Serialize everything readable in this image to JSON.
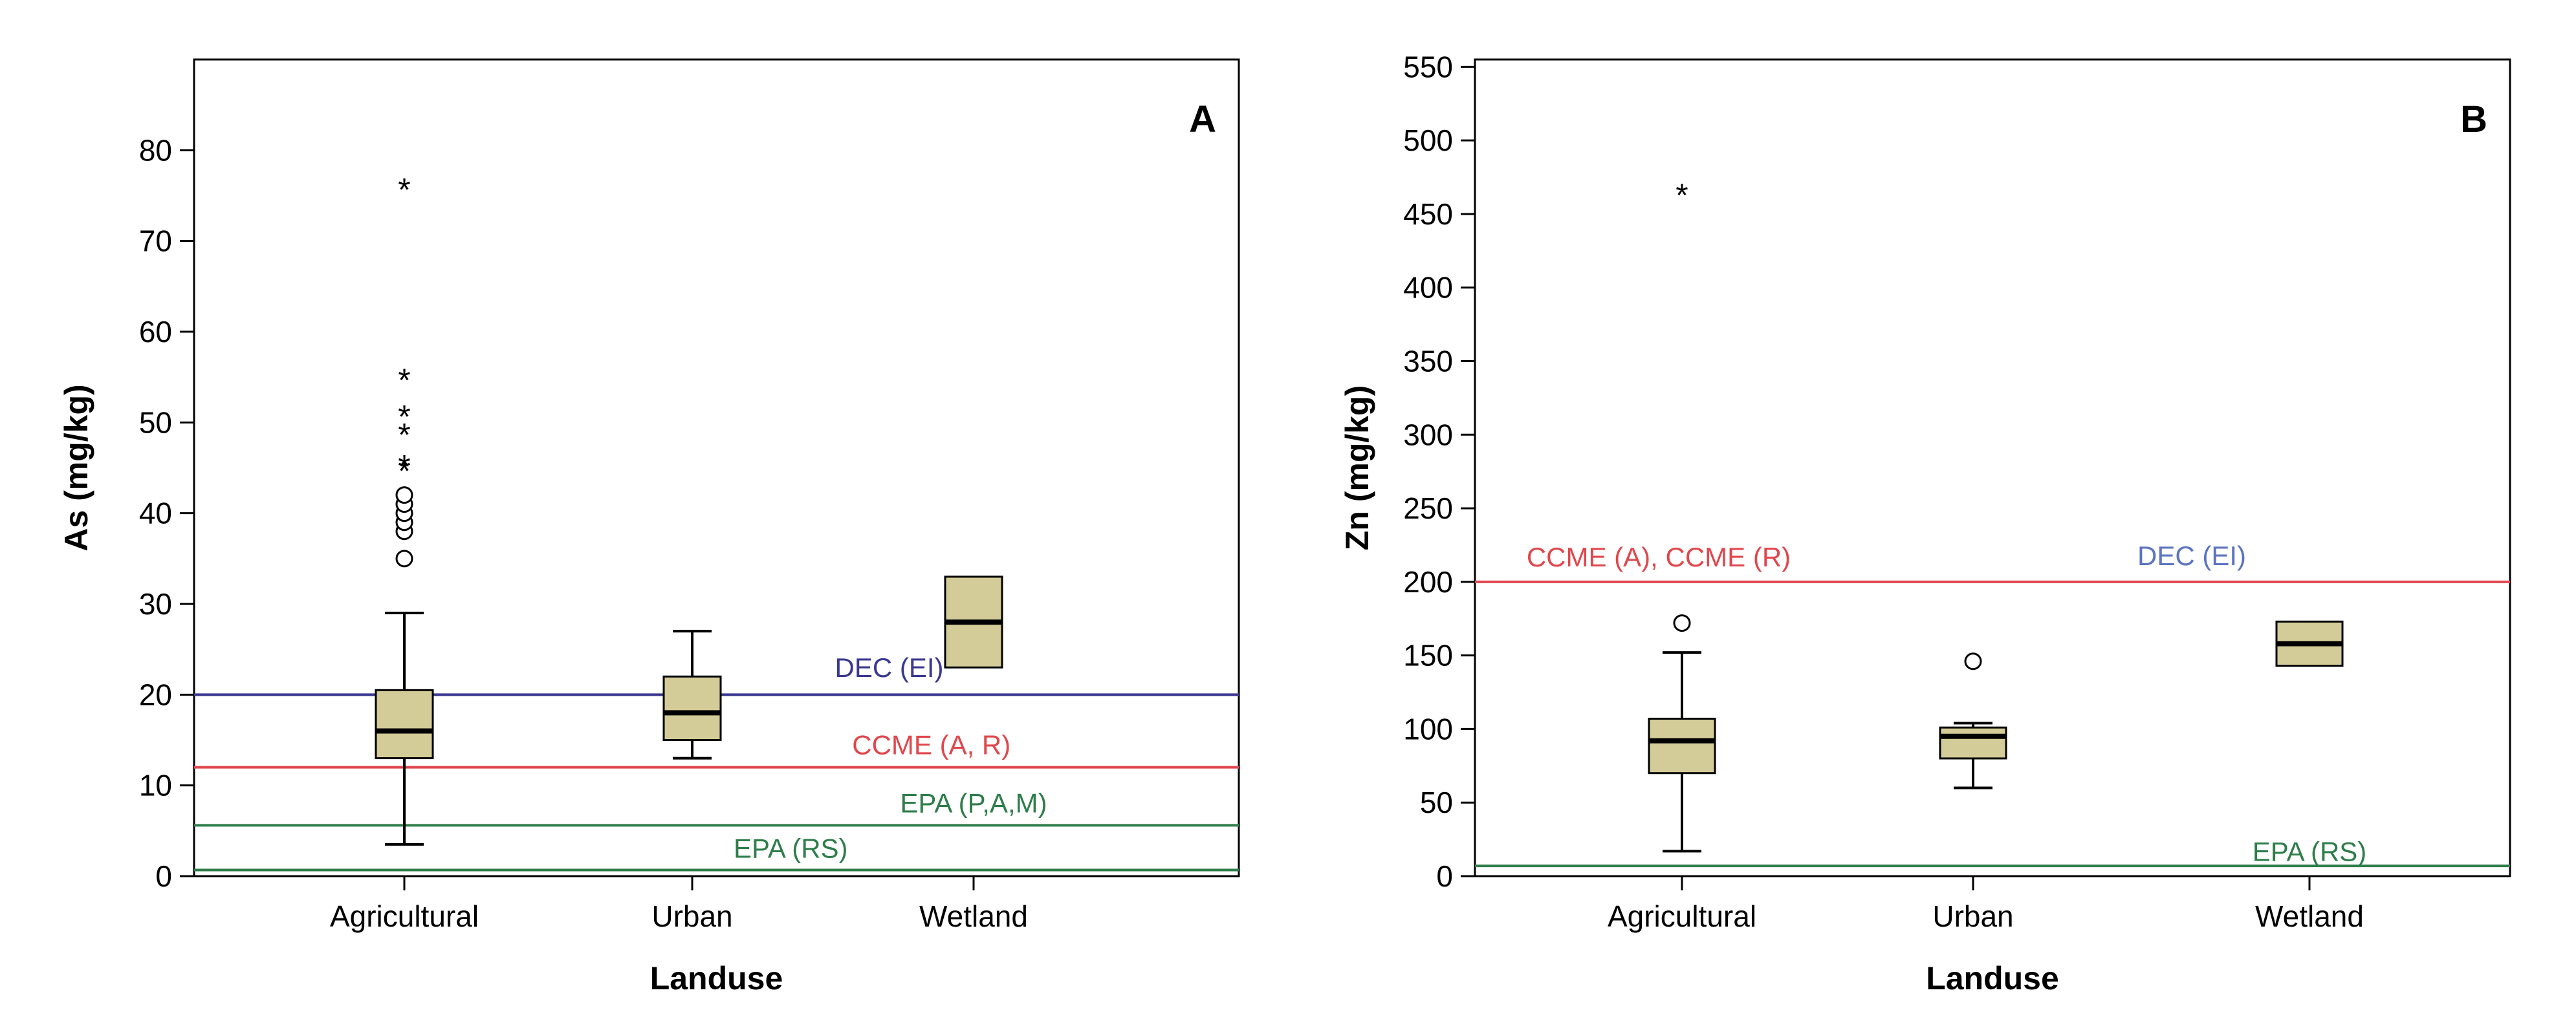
{
  "colors": {
    "box_fill": "#d3cc98",
    "dec": "#3a3891",
    "ccme": "#e0474c",
    "epa": "#2e7d4a",
    "dec_b": "#5c74c0"
  },
  "chart_data": [
    {
      "type": "box",
      "panel_label": "A",
      "xlabel": "Landuse",
      "ylabel": "As (mg/kg)",
      "categories": [
        "Agricultural",
        "Urban",
        "Wetland"
      ],
      "ylim": [
        0,
        90
      ],
      "yticks": [
        0,
        10,
        20,
        30,
        40,
        50,
        60,
        70,
        80
      ],
      "tick_labels": [
        "0",
        "10",
        "20",
        "30",
        "40",
        "50",
        "60",
        "70",
        "80"
      ],
      "boxes": [
        {
          "category": "Agricultural",
          "min": 3.5,
          "q1": 13,
          "median": 16,
          "q3": 20.5,
          "max": 29,
          "has_whiskers": true,
          "outliers_circle": [
            35,
            38,
            39,
            40,
            41,
            42
          ],
          "outliers_star": [
            45,
            45.5,
            49,
            51,
            55,
            76
          ]
        },
        {
          "category": "Urban",
          "min": 13,
          "q1": 15,
          "median": 18,
          "q3": 22,
          "max": 27,
          "has_whiskers": true,
          "outliers_circle": [],
          "outliers_star": []
        },
        {
          "category": "Wetland",
          "min": 23,
          "q1": 23,
          "median": 28,
          "q3": 33,
          "max": 33,
          "has_whiskers": false,
          "outliers_circle": [],
          "outliers_star": []
        }
      ],
      "reference_lines": [
        {
          "label": "DEC (EI)",
          "value": 20,
          "color_key": "dec"
        },
        {
          "label": "CCME (A, R)",
          "value": 12,
          "color_key": "ccme"
        },
        {
          "label": "EPA (P,A,M)",
          "value": 5.6,
          "color_key": "epa"
        },
        {
          "label": "EPA (RS)",
          "value": 0.68,
          "color_key": "epa"
        }
      ],
      "ref_label_positions": [
        {
          "category_index": 1.7,
          "value": 23
        },
        {
          "category_index": 1.85,
          "value": 14.5
        },
        {
          "category_index": 2.05,
          "value": 8.1
        },
        {
          "category_index": 1.35,
          "value": 3.1
        }
      ]
    },
    {
      "type": "box",
      "panel_label": "B",
      "xlabel": "Landuse",
      "ylabel": "Zn (mg/kg)",
      "categories": [
        "Agricultural",
        "Urban",
        "Wetland"
      ],
      "ylim": [
        0,
        555
      ],
      "yticks": [
        0,
        50,
        100,
        150,
        200,
        250,
        300,
        350,
        400,
        450,
        500,
        550
      ],
      "tick_labels": [
        "0",
        "50",
        "100",
        "150",
        "200",
        "250",
        "300",
        "350",
        "400",
        "450",
        "500",
        "550"
      ],
      "boxes": [
        {
          "category": "Agricultural",
          "min": 17,
          "q1": 70,
          "median": 92,
          "q3": 107,
          "max": 152,
          "has_whiskers": true,
          "outliers_circle": [
            172
          ],
          "outliers_star": [
            465
          ]
        },
        {
          "category": "Urban",
          "min": 60,
          "q1": 80,
          "median": 95,
          "q3": 101,
          "max": 104,
          "has_whiskers": true,
          "outliers_circle": [
            146
          ],
          "outliers_star": []
        },
        {
          "category": "Wetland",
          "min": 143,
          "q1": 143,
          "median": 158,
          "q3": 173,
          "max": 173,
          "has_whiskers": false,
          "outliers_circle": [],
          "outliers_star": []
        }
      ],
      "reference_lines": [
        {
          "label": "CCME (A), CCME (R)",
          "value": 200,
          "color_key": "ccme"
        },
        {
          "label": "EPA (RS)",
          "value": 7,
          "color_key": "epa"
        }
      ],
      "extra_labels": [
        {
          "label": "DEC (EI)",
          "color_key": "dec_b"
        }
      ],
      "ref_label_positions": [
        {
          "category_index": -0.08,
          "value": 217
        },
        {
          "category_index": 2.0,
          "value": 17
        }
      ],
      "extra_label_positions": [
        {
          "category_index": 1.65,
          "value": 218
        }
      ]
    }
  ]
}
